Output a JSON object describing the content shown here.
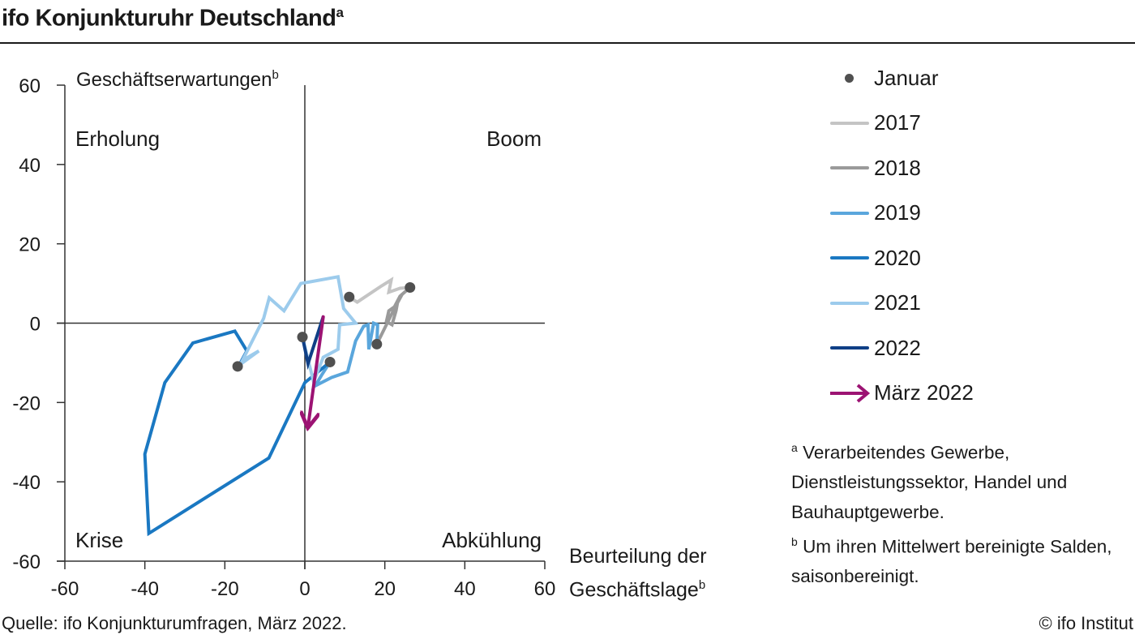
{
  "header": {
    "title": "ifo Konjunkturuhr Deutschland",
    "title_sup": "a"
  },
  "footer": {
    "source": "Quelle: ifo Konjunkturumfragen, März 2022.",
    "copyright": "© ifo Institut"
  },
  "notes": {
    "a_mark": "a",
    "a_text": "Verarbeitendes  Gewerbe, Dienstleistungssektor,  Handel und Bauhauptgewerbe.",
    "b_mark": "b",
    "b_text": "Um ihren Mittelwert  bereinigte Salden, saisonbereinigt."
  },
  "chart_data": {
    "type": "line",
    "title": "ifo Konjunkturuhr Deutschland",
    "xlabel": "Beurteilung der Geschäftslage",
    "xlabel_line1": "Beurteilung der",
    "xlabel_line2": "Geschäftslage",
    "xlabel_sup": "b",
    "ylabel": "Geschäftserwartungen",
    "ylabel_sup": "b",
    "xlim": [
      -60,
      60
    ],
    "ylim": [
      -60,
      60
    ],
    "xticks": [
      "-60",
      "-40",
      "-20",
      "0",
      "20",
      "40",
      "60"
    ],
    "yticks": [
      "60",
      "40",
      "20",
      "0",
      "-20",
      "-40",
      "-60"
    ],
    "grid": false,
    "legend_position": "right",
    "quadrants": {
      "top_left": "Erholung",
      "top_right": "Boom",
      "bottom_left": "Krise",
      "bottom_right": "Abkühlung"
    },
    "legend": {
      "january": "Januar",
      "march_arrow": "März 2022"
    },
    "series": [
      {
        "name": "2017",
        "color": "#c4c4c4",
        "points": [
          [
            11.1,
            6.6
          ],
          [
            13.1,
            5.3
          ],
          [
            19.2,
            9.4
          ],
          [
            21.6,
            10.9
          ],
          [
            21.0,
            7.8
          ],
          [
            23.8,
            8.8
          ],
          [
            26.3,
            9.0
          ]
        ]
      },
      {
        "name": "2018",
        "color": "#9a9a9a",
        "points": [
          [
            26.3,
            9.0
          ],
          [
            23.8,
            6.8
          ],
          [
            22.4,
            4.1
          ],
          [
            21.0,
            3.1
          ],
          [
            20.4,
            0.4
          ],
          [
            21.8,
            -0.4
          ],
          [
            22.8,
            3.1
          ],
          [
            23.2,
            5.3
          ],
          [
            24.4,
            7.4
          ],
          [
            22.4,
            3.7
          ],
          [
            18.0,
            -5.3
          ]
        ]
      },
      {
        "name": "2019",
        "color": "#5aa6dc",
        "points": [
          [
            18.0,
            -5.3
          ],
          [
            18.2,
            -0.4
          ],
          [
            17.2,
            0.0
          ],
          [
            16.0,
            -6.6
          ],
          [
            15.8,
            -0.4
          ],
          [
            14.7,
            -0.8
          ],
          [
            12.7,
            -4.5
          ],
          [
            10.7,
            -12.3
          ],
          [
            6.7,
            -13.7
          ],
          [
            2.6,
            -15.8
          ],
          [
            4.2,
            -13.1
          ],
          [
            6.3,
            -9.8
          ]
        ]
      },
      {
        "name": "2020",
        "color": "#1a78c2",
        "points": [
          [
            6.3,
            -9.8
          ],
          [
            0.0,
            -15.0
          ],
          [
            -9.0,
            -34.0
          ],
          [
            -39.0,
            -53.0
          ],
          [
            -40.0,
            -33.0
          ],
          [
            -35.0,
            -15.0
          ],
          [
            -28.0,
            -5.0
          ],
          [
            -17.5,
            -2.0
          ],
          [
            -14.5,
            -7.0
          ],
          [
            -16.2,
            -10.2
          ],
          [
            -16.8,
            -10.9
          ]
        ]
      },
      {
        "name": "2021",
        "color": "#9ccbec",
        "points": [
          [
            -16.8,
            -10.9
          ],
          [
            -11.5,
            -7.0
          ],
          [
            -15.6,
            -9.4
          ],
          [
            -10.3,
            1.2
          ],
          [
            -8.9,
            6.4
          ],
          [
            -5.2,
            3.1
          ],
          [
            -1.0,
            10.0
          ],
          [
            8.3,
            11.7
          ],
          [
            9.7,
            3.7
          ],
          [
            12.7,
            0.0
          ],
          [
            8.7,
            -0.4
          ],
          [
            8.3,
            -6.6
          ],
          [
            4.6,
            -8.6
          ],
          [
            2.2,
            -14.8
          ],
          [
            -0.6,
            -3.5
          ]
        ]
      },
      {
        "name": "2022",
        "color": "#0f3f86",
        "points": [
          [
            -0.6,
            -3.5
          ],
          [
            0.8,
            -10.2
          ],
          [
            4.6,
            1.6
          ]
        ]
      },
      {
        "name": "März 2022",
        "color": "#9c1373",
        "arrow": true,
        "points": [
          [
            4.6,
            1.6
          ],
          [
            0.8,
            -26.0
          ]
        ]
      }
    ],
    "january_points": [
      [
        11.1,
        6.6
      ],
      [
        26.3,
        9.0
      ],
      [
        18.0,
        -5.3
      ],
      [
        6.3,
        -9.8
      ],
      [
        -16.8,
        -10.9
      ],
      [
        -0.6,
        -3.5
      ]
    ]
  }
}
